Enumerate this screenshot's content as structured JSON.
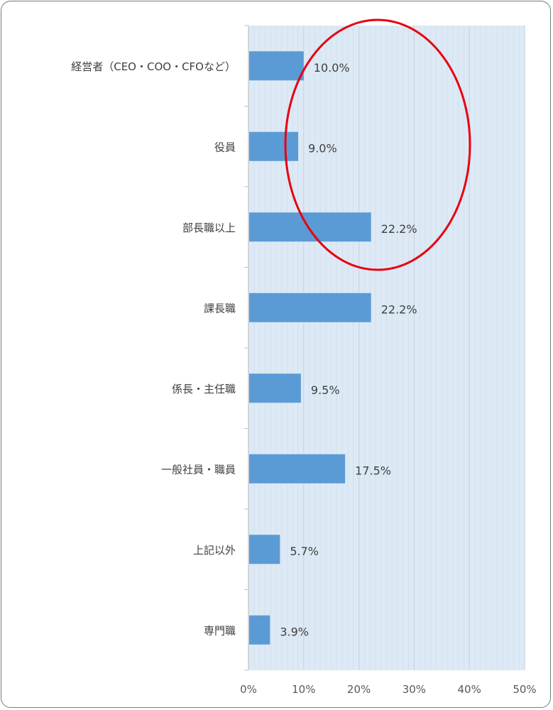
{
  "chart_data": {
    "type": "bar",
    "orientation": "horizontal",
    "categories": [
      "経営者（CEO・COO・CFOなど）",
      "役員",
      "部長職以上",
      "課長職",
      "係長・主任職",
      "一般社員・職員",
      "上記以外",
      "専門職"
    ],
    "values": [
      10.0,
      9.0,
      22.2,
      22.2,
      9.5,
      17.5,
      5.7,
      3.9
    ],
    "value_labels": [
      "10.0%",
      "9.0%",
      "22.2%",
      "22.2%",
      "9.5%",
      "17.5%",
      "5.7%",
      "3.9%"
    ],
    "x_ticks": [
      "0%",
      "10%",
      "20%",
      "30%",
      "40%",
      "50%"
    ],
    "xlim": [
      0,
      50
    ],
    "grid": true,
    "title": "",
    "xlabel": "",
    "ylabel": "",
    "colors": {
      "bar": "#5b9bd5",
      "plot_background": "#dde9f5",
      "annotation": "#e8000f"
    },
    "annotation": {
      "shape": "ellipse",
      "highlights": [
        "経営者（CEO・COO・CFOなど）",
        "役員",
        "部長職以上"
      ]
    }
  }
}
